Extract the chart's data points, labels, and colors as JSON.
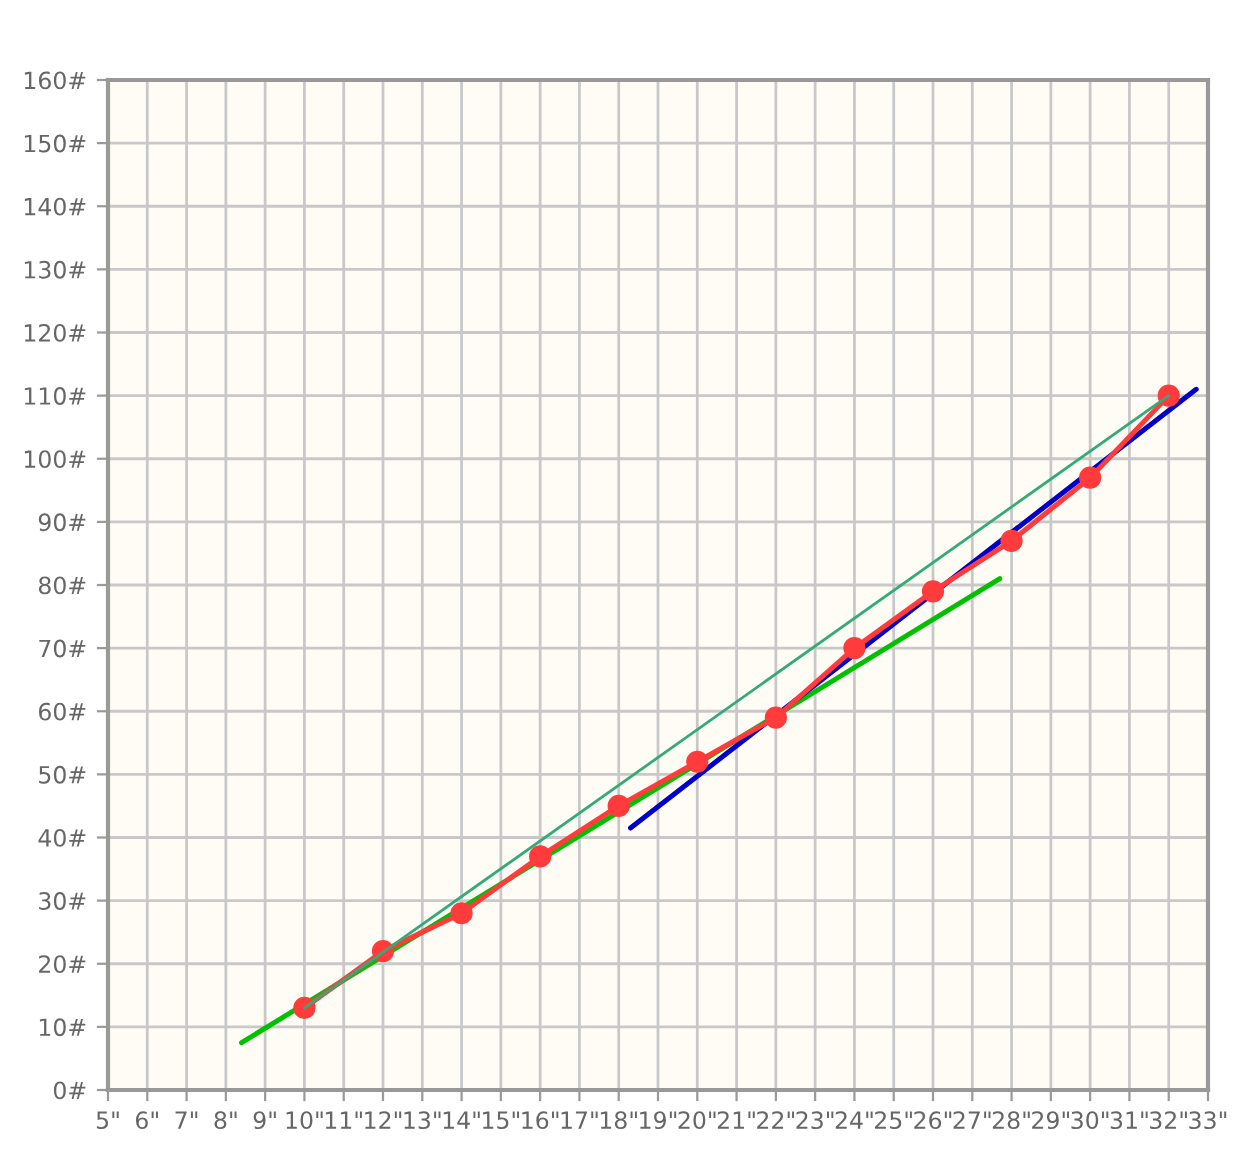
{
  "chart_data": {
    "type": "line",
    "marker": "none",
    "line_style": "solid",
    "grid": true,
    "legend": false,
    "xlim": [
      5,
      33
    ],
    "ylim": [
      0,
      160
    ],
    "xticks": [
      {
        "value": 5,
        "label": "5\""
      },
      {
        "value": 6,
        "label": "6\""
      },
      {
        "value": 7,
        "label": "7\""
      },
      {
        "value": 8,
        "label": "8\""
      },
      {
        "value": 9,
        "label": "9\""
      },
      {
        "value": 10,
        "label": "10\""
      },
      {
        "value": 11,
        "label": "11\""
      },
      {
        "value": 12,
        "label": "12\""
      },
      {
        "value": 13,
        "label": "13\""
      },
      {
        "value": 14,
        "label": "14\""
      },
      {
        "value": 15,
        "label": "15\""
      },
      {
        "value": 16,
        "label": "16\""
      },
      {
        "value": 17,
        "label": "17\""
      },
      {
        "value": 18,
        "label": "18\""
      },
      {
        "value": 19,
        "label": "19\""
      },
      {
        "value": 20,
        "label": "20\""
      },
      {
        "value": 21,
        "label": "21\""
      },
      {
        "value": 22,
        "label": "22\""
      },
      {
        "value": 23,
        "label": "23\""
      },
      {
        "value": 24,
        "label": "24\""
      },
      {
        "value": 25,
        "label": "25\""
      },
      {
        "value": 26,
        "label": "26\""
      },
      {
        "value": 27,
        "label": "27\""
      },
      {
        "value": 28,
        "label": "28\""
      },
      {
        "value": 29,
        "label": "29\""
      },
      {
        "value": 30,
        "label": "30\""
      },
      {
        "value": 31,
        "label": "31\""
      },
      {
        "value": 32,
        "label": "32\""
      },
      {
        "value": 33,
        "label": "33\""
      }
    ],
    "yticks": [
      {
        "value": 0,
        "label": "0#"
      },
      {
        "value": 10,
        "label": "10#"
      },
      {
        "value": 20,
        "label": "20#"
      },
      {
        "value": 30,
        "label": "30#"
      },
      {
        "value": 40,
        "label": "40#"
      },
      {
        "value": 50,
        "label": "50#"
      },
      {
        "value": 60,
        "label": "60#"
      },
      {
        "value": 70,
        "label": "70#"
      },
      {
        "value": 80,
        "label": "80#"
      },
      {
        "value": 90,
        "label": "90#"
      },
      {
        "value": 100,
        "label": "100#"
      },
      {
        "value": 110,
        "label": "110#"
      },
      {
        "value": 120,
        "label": "120#"
      },
      {
        "value": 130,
        "label": "130#"
      },
      {
        "value": 140,
        "label": "140#"
      },
      {
        "value": 150,
        "label": "150#"
      },
      {
        "value": 160,
        "label": "160#"
      }
    ],
    "series": [
      {
        "color": "#33aa77",
        "x": [
          10,
          32
        ],
        "values": [
          13,
          110
        ]
      },
      {
        "color": "#00c000",
        "x": [
          8.4,
          27.7
        ],
        "values": [
          7.5,
          81
        ]
      },
      {
        "color": "#0000c8",
        "x": [
          18.3,
          32.7
        ],
        "values": [
          41.5,
          111
        ]
      },
      {
        "color": "#ff3b3b",
        "marker": "circle",
        "x": [
          10,
          12,
          14,
          16,
          18,
          20,
          22,
          24,
          26,
          28,
          30,
          32
        ],
        "values": [
          13,
          22,
          28,
          37,
          45,
          52,
          59,
          70,
          79,
          87,
          97,
          110
        ]
      }
    ]
  }
}
